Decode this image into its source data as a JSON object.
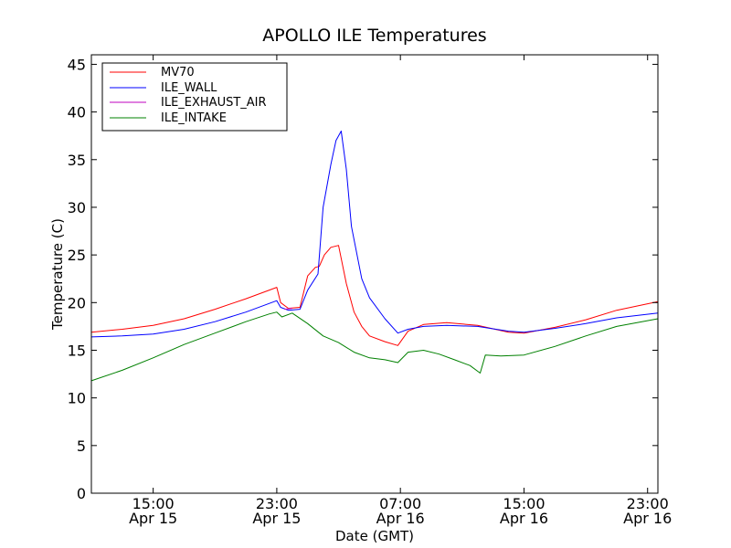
{
  "chart_data": {
    "type": "line",
    "title": "APOLLO ILE Temperatures",
    "xlabel": "Date (GMT)",
    "ylabel": "Temperature (C)",
    "ylim": [
      0,
      46
    ],
    "yticks": [
      0,
      5,
      10,
      15,
      20,
      25,
      30,
      35,
      40,
      45
    ],
    "xlim": [
      "2015-04-15T11:00",
      "2015-04-16T23:40"
    ],
    "xticks": [
      {
        "time": "2015-04-15T15:00",
        "line1": "15:00",
        "line2": "Apr 15"
      },
      {
        "time": "2015-04-15T23:00",
        "line1": "23:00",
        "line2": "Apr 15"
      },
      {
        "time": "2015-04-16T07:00",
        "line1": "07:00",
        "line2": "Apr 16"
      },
      {
        "time": "2015-04-16T15:00",
        "line1": "15:00",
        "line2": "Apr 16"
      },
      {
        "time": "2015-04-16T23:00",
        "line1": "23:00",
        "line2": "Apr 16"
      }
    ],
    "grid": false,
    "legend_position": "top-left",
    "series": [
      {
        "name": "MV70",
        "color": "#ff0000",
        "x": [
          "2015-04-15T11:00",
          "2015-04-15T13:00",
          "2015-04-15T15:00",
          "2015-04-15T17:00",
          "2015-04-15T19:00",
          "2015-04-15T21:00",
          "2015-04-15T23:00",
          "2015-04-15T23:15",
          "2015-04-15T23:45",
          "2015-04-16T00:30",
          "2015-04-16T01:00",
          "2015-04-16T01:30",
          "2015-04-16T01:45",
          "2015-04-16T02:05",
          "2015-04-16T02:30",
          "2015-04-16T03:00",
          "2015-04-16T03:30",
          "2015-04-16T04:00",
          "2015-04-16T04:30",
          "2015-04-16T05:00",
          "2015-04-16T06:00",
          "2015-04-16T06:50",
          "2015-04-16T07:30",
          "2015-04-16T08:30",
          "2015-04-16T10:00",
          "2015-04-16T12:00",
          "2015-04-16T14:00",
          "2015-04-16T15:00",
          "2015-04-16T17:00",
          "2015-04-16T19:00",
          "2015-04-16T21:00",
          "2015-04-16T23:40"
        ],
        "y": [
          16.9,
          17.2,
          17.6,
          18.3,
          19.3,
          20.4,
          21.6,
          20.0,
          19.4,
          19.5,
          22.8,
          23.7,
          23.8,
          25.0,
          25.8,
          26.0,
          22.0,
          19.0,
          17.5,
          16.5,
          15.9,
          15.5,
          17.0,
          17.7,
          17.9,
          17.6,
          16.9,
          16.8,
          17.4,
          18.2,
          19.2,
          20.1
        ]
      },
      {
        "name": "ILE_WALL",
        "color": "#0000ff",
        "x": [
          "2015-04-15T11:00",
          "2015-04-15T13:00",
          "2015-04-15T15:00",
          "2015-04-15T17:00",
          "2015-04-15T19:00",
          "2015-04-15T21:00",
          "2015-04-15T23:00",
          "2015-04-15T23:15",
          "2015-04-15T23:45",
          "2015-04-16T00:30",
          "2015-04-16T01:00",
          "2015-04-16T01:40",
          "2015-04-16T02:00",
          "2015-04-16T02:30",
          "2015-04-16T02:50",
          "2015-04-16T03:10",
          "2015-04-16T03:30",
          "2015-04-16T03:50",
          "2015-04-16T04:30",
          "2015-04-16T05:00",
          "2015-04-16T06:00",
          "2015-04-16T06:50",
          "2015-04-16T07:30",
          "2015-04-16T08:30",
          "2015-04-16T10:00",
          "2015-04-16T12:00",
          "2015-04-16T14:00",
          "2015-04-16T15:00",
          "2015-04-16T17:00",
          "2015-04-16T19:00",
          "2015-04-16T21:00",
          "2015-04-16T23:40"
        ],
        "y": [
          16.4,
          16.5,
          16.7,
          17.2,
          18.0,
          19.0,
          20.2,
          19.5,
          19.2,
          19.3,
          21.3,
          23.0,
          30.0,
          34.5,
          37.0,
          38.0,
          34.0,
          28.0,
          22.5,
          20.5,
          18.3,
          16.8,
          17.2,
          17.5,
          17.6,
          17.5,
          17.0,
          16.9,
          17.3,
          17.8,
          18.4,
          18.9
        ]
      },
      {
        "name": "ILE_EXHAUST_AIR",
        "color": "#bf00bf",
        "x": [
          "2015-04-15T23:30",
          "2015-04-16T00:00"
        ],
        "y": [
          19.3,
          19.4
        ]
      },
      {
        "name": "ILE_INTAKE",
        "color": "#008000",
        "x": [
          "2015-04-15T11:00",
          "2015-04-15T13:00",
          "2015-04-15T15:00",
          "2015-04-15T17:00",
          "2015-04-15T19:00",
          "2015-04-15T21:00",
          "2015-04-15T22:30",
          "2015-04-15T23:00",
          "2015-04-15T23:20",
          "2015-04-16T00:00",
          "2015-04-16T01:00",
          "2015-04-16T02:00",
          "2015-04-16T03:00",
          "2015-04-16T04:00",
          "2015-04-16T05:00",
          "2015-04-16T06:00",
          "2015-04-16T06:50",
          "2015-04-16T07:30",
          "2015-04-16T08:30",
          "2015-04-16T09:30",
          "2015-04-16T10:30",
          "2015-04-16T11:30",
          "2015-04-16T12:10",
          "2015-04-16T12:30",
          "2015-04-16T13:30",
          "2015-04-16T15:00",
          "2015-04-16T17:00",
          "2015-04-16T19:00",
          "2015-04-16T21:00",
          "2015-04-16T23:40"
        ],
        "y": [
          11.8,
          12.9,
          14.2,
          15.6,
          16.8,
          18.0,
          18.8,
          19.0,
          18.5,
          18.9,
          17.8,
          16.5,
          15.8,
          14.8,
          14.2,
          14.0,
          13.7,
          14.8,
          15.0,
          14.6,
          14.0,
          13.4,
          12.6,
          14.5,
          14.4,
          14.5,
          15.4,
          16.5,
          17.5,
          18.3
        ]
      }
    ]
  }
}
